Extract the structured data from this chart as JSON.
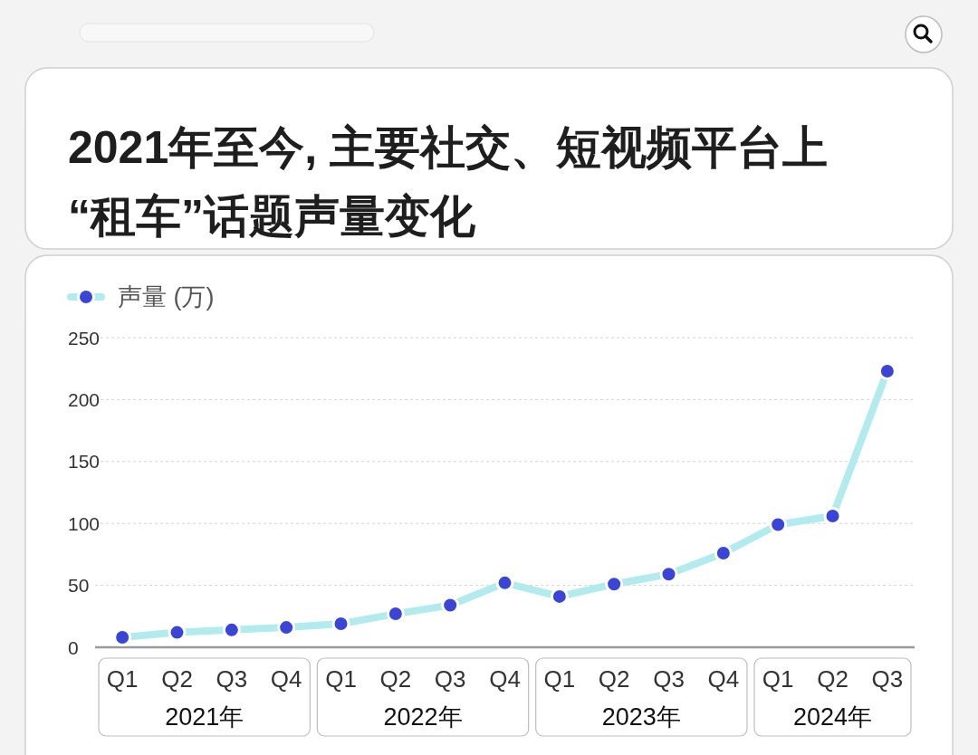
{
  "chart_data": {
    "type": "line",
    "title": "2021年至今, 主要社交、短视频平台上\n“租车”话题声量变化",
    "categories": [
      "Q1",
      "Q2",
      "Q3",
      "Q4",
      "Q1",
      "Q2",
      "Q3",
      "Q4",
      "Q1",
      "Q2",
      "Q3",
      "Q4",
      "Q1",
      "Q2",
      "Q3"
    ],
    "series": [
      {
        "name": "声量 (万)",
        "color": "#b2ebee",
        "colors": [
          "#3a44d6",
          "#3a44d6",
          "#3a44d6",
          "#3a44d6",
          "#3a44d6",
          "#3a44d6",
          "#3a44d6",
          "#3a44d6",
          "#3a44d6",
          "#3a44d6",
          "#3a44d6",
          "#3a44d6",
          "#3a44d6",
          "#3a44d6",
          "#3a44d6"
        ],
        "values": [
          8,
          12,
          14,
          16,
          19,
          27,
          34,
          52,
          41,
          51,
          59,
          76,
          99,
          106,
          223
        ]
      }
    ],
    "ylim": [
      0,
      250
    ],
    "yticks": [
      0,
      50,
      100,
      150,
      200,
      250
    ],
    "grid": "y",
    "legend": "top left",
    "marker": "circle",
    "annotations": [
      "2021年",
      "2022年",
      "2023年",
      "2024年"
    ]
  }
}
